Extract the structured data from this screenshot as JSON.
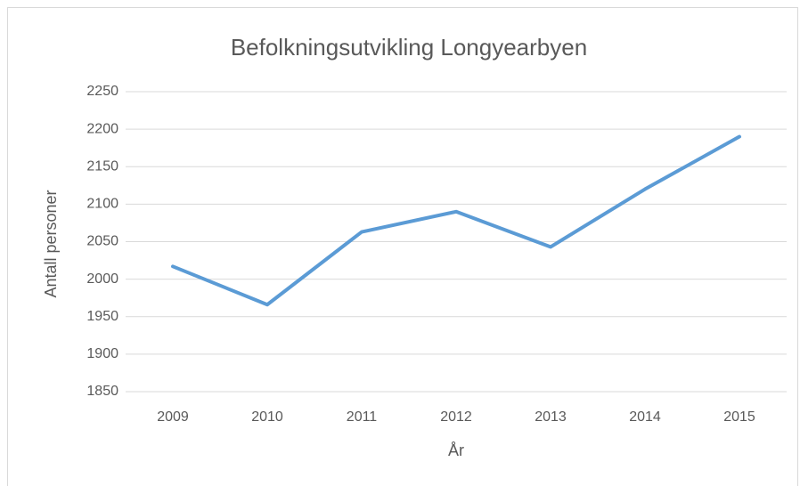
{
  "chart_data": {
    "type": "line",
    "title": "Befolkningsutvikling Longyearbyen",
    "x_label": "År",
    "y_label": "Antall personer",
    "categories": [
      "2009",
      "2010",
      "2011",
      "2012",
      "2013",
      "2014",
      "2015"
    ],
    "series": [
      {
        "name": "Antall personer",
        "color": "#5b9bd5",
        "values": [
          2017,
          1966,
          2063,
          2090,
          2043,
          2120,
          2190
        ]
      }
    ],
    "ylim": [
      1850,
      2250
    ],
    "yticks": [
      1850,
      1900,
      1950,
      2000,
      2050,
      2100,
      2150,
      2200,
      2250
    ],
    "grid": true
  }
}
